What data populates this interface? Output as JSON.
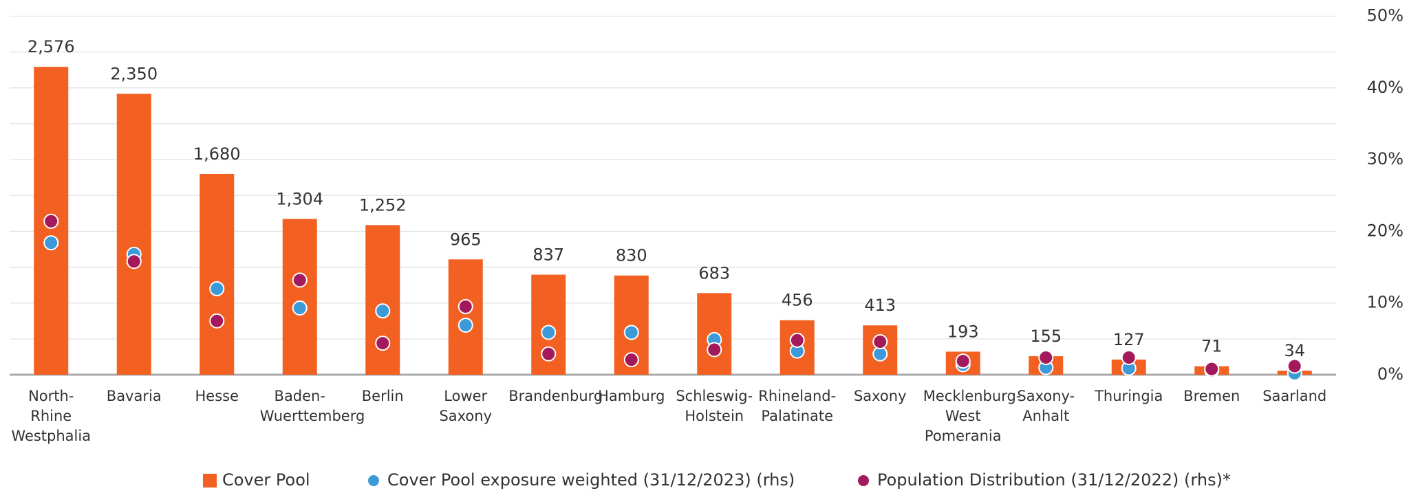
{
  "chart_data": {
    "type": "bar",
    "categories": [
      "North-Rhine Westphalia",
      "Bavaria",
      "Hesse",
      "Baden-Wuerttemberg",
      "Berlin",
      "Lower Saxony",
      "Brandenburg",
      "Hamburg",
      "Schleswig-Holstein",
      "Rhineland-Palatinate",
      "Saxony",
      "Mecklenburg-West Pomerania",
      "Saxony-Anhalt",
      "Thuringia",
      "Bremen",
      "Saarland"
    ],
    "series": [
      {
        "name": "Cover Pool",
        "type": "bar",
        "color": "#f26122",
        "values": [
          2576,
          2350,
          1680,
          1304,
          1252,
          965,
          837,
          830,
          683,
          456,
          413,
          193,
          155,
          127,
          71,
          34
        ],
        "value_labels": [
          "2,576",
          "2,350",
          "1,680",
          "1,304",
          "1,252",
          "965",
          "837",
          "830",
          "683",
          "456",
          "413",
          "193",
          "155",
          "127",
          "71",
          "34"
        ]
      },
      {
        "name": "Cover Pool exposure weighted (31/12/2023) (rhs)",
        "type": "scatter",
        "axis": "y2",
        "color": "#3d9ad8",
        "values": [
          18.4,
          16.8,
          12.0,
          9.3,
          8.9,
          6.9,
          5.9,
          5.9,
          4.9,
          3.3,
          2.9,
          1.4,
          1.0,
          0.9,
          0.6,
          0.2
        ]
      },
      {
        "name": "Population Distribution (31/12/2022) (rhs)*",
        "type": "scatter",
        "axis": "y2",
        "color": "#a3195b",
        "values": [
          21.4,
          15.8,
          7.5,
          13.2,
          4.4,
          9.5,
          2.9,
          2.1,
          3.5,
          4.8,
          4.6,
          1.9,
          2.4,
          2.4,
          0.8,
          1.2
        ]
      }
    ],
    "ylim": [
      0,
      3000
    ],
    "y2lim": [
      0,
      50
    ],
    "y2ticks": [
      {
        "value": 0,
        "label": "0%"
      },
      {
        "value": 10,
        "label": "10%"
      },
      {
        "value": 20,
        "label": "20%"
      },
      {
        "value": 30,
        "label": "30%"
      },
      {
        "value": 40,
        "label": "40%"
      },
      {
        "value": 50,
        "label": "50%"
      }
    ],
    "y2_minor_gridlines": [
      5,
      15,
      25,
      35,
      45
    ],
    "grid": true,
    "legend": "bottom"
  }
}
